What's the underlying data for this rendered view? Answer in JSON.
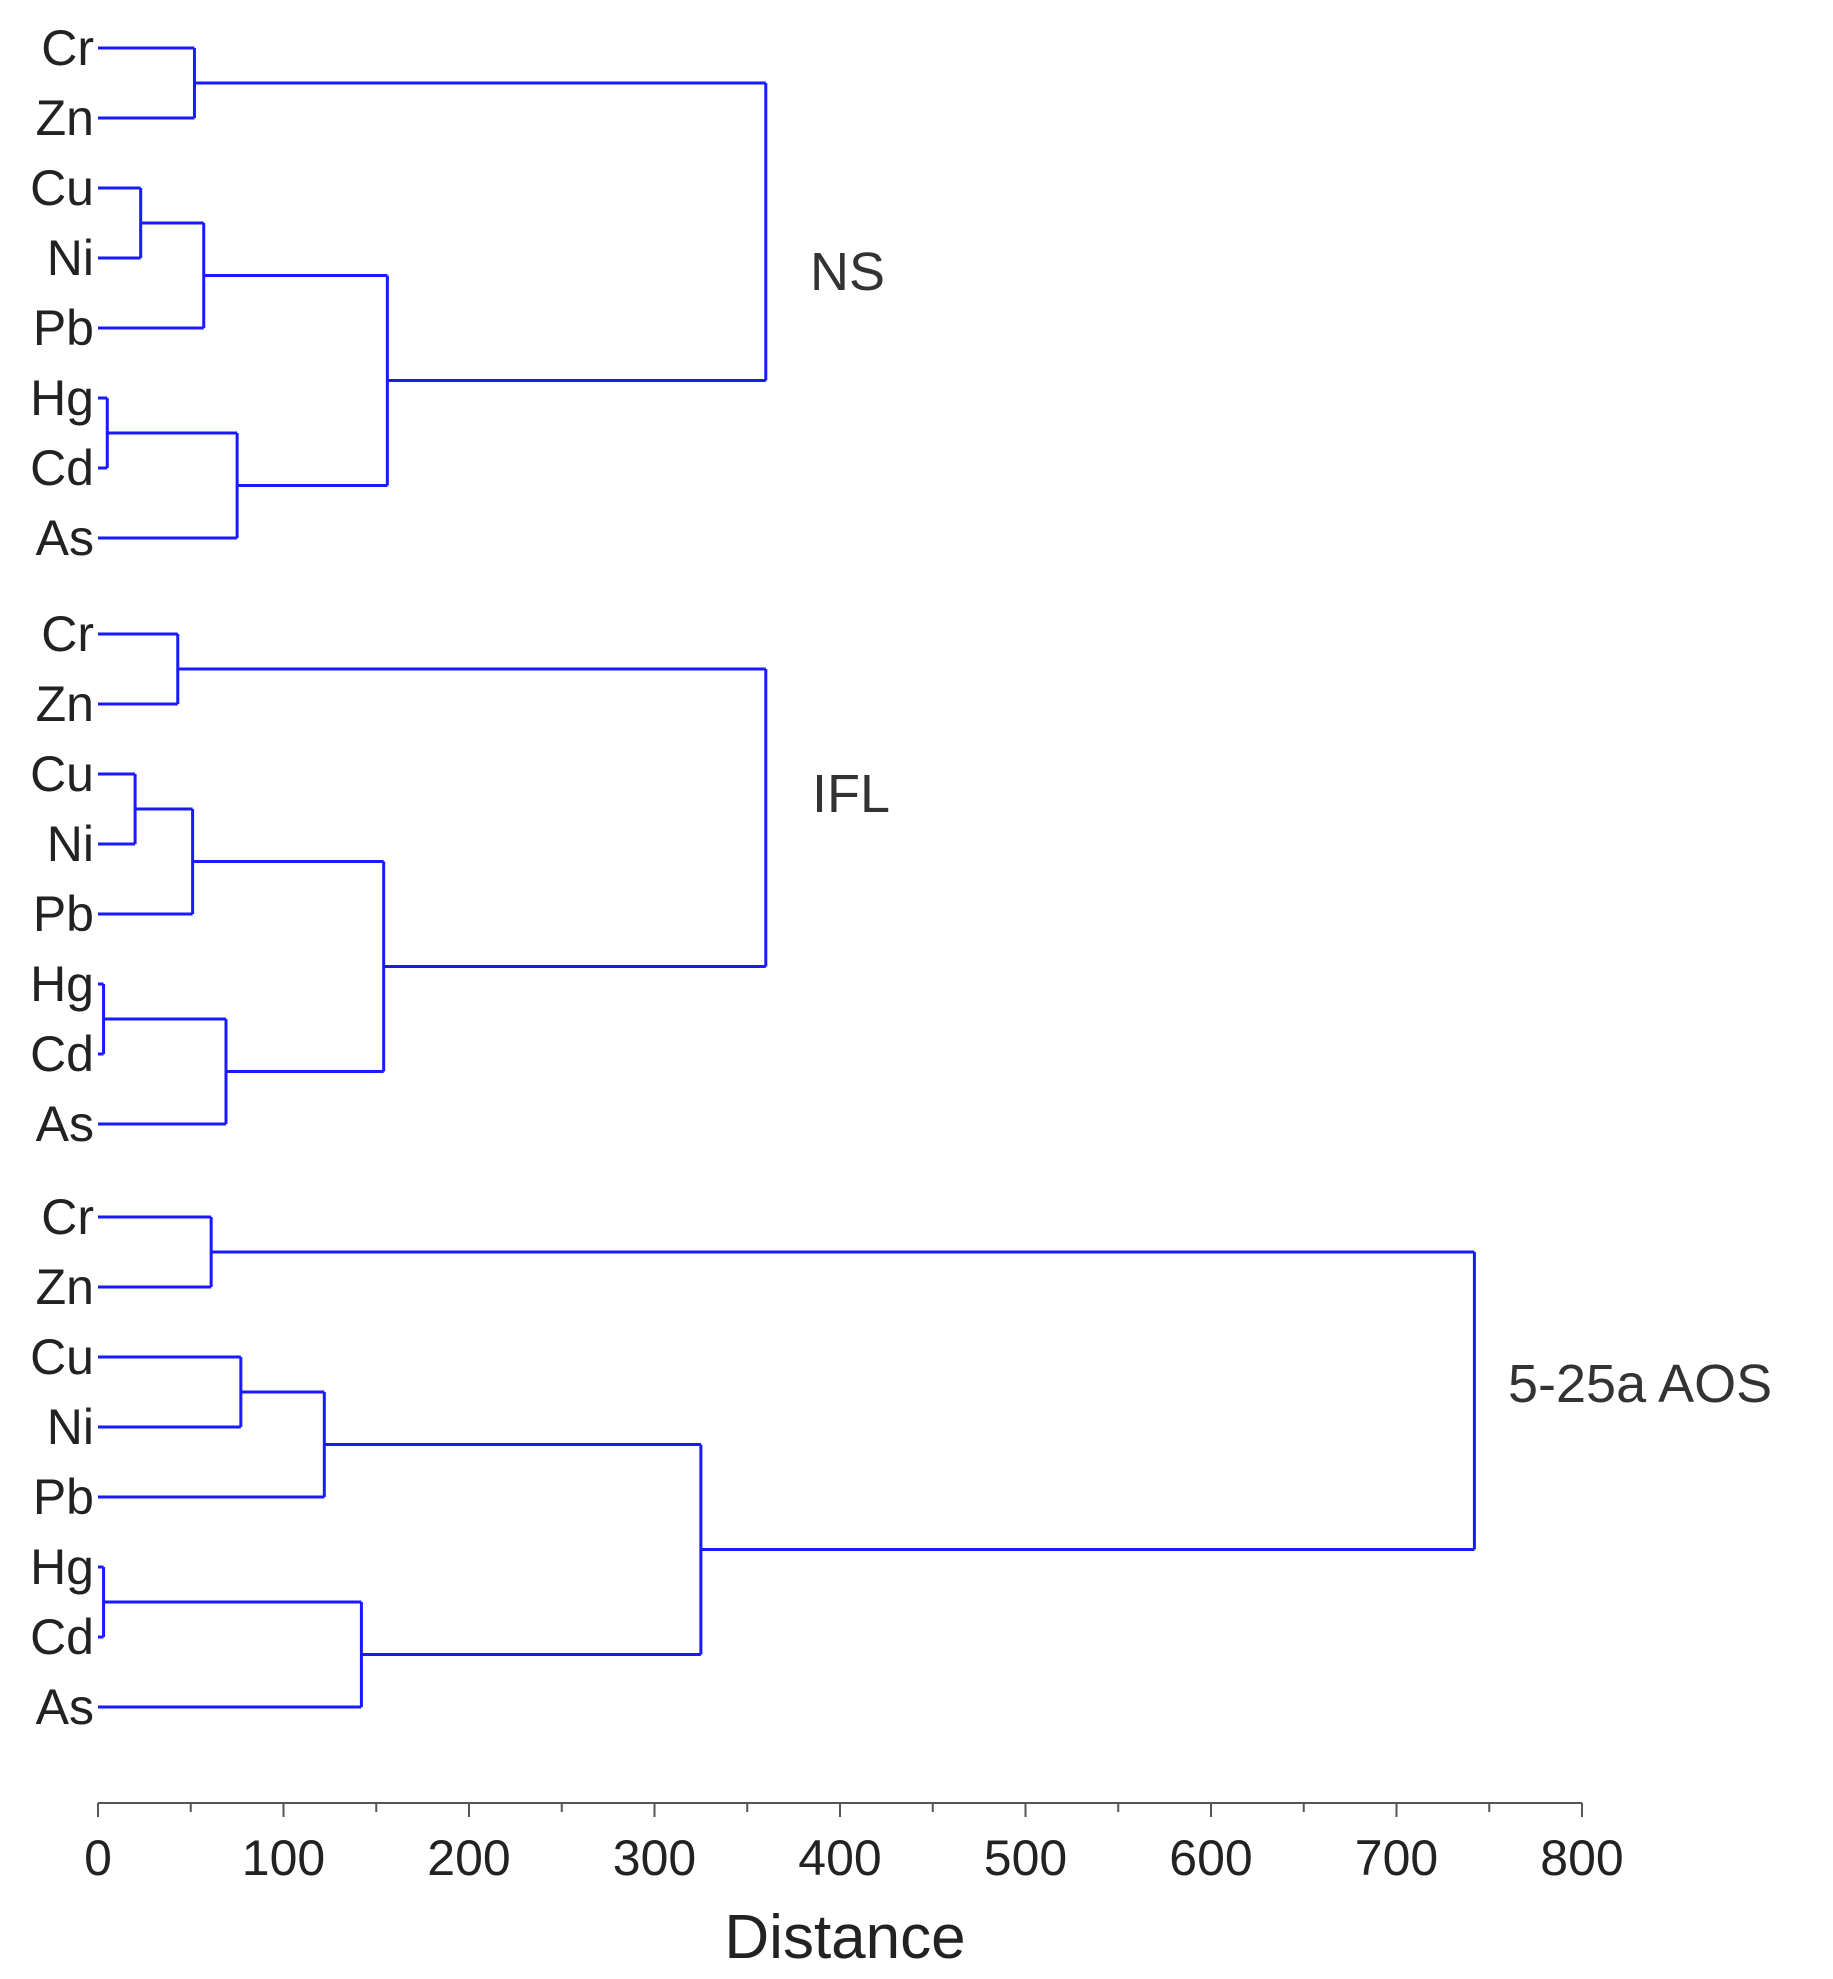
{
  "chart_data": {
    "type": "dendrogram",
    "orientation": "horizontal",
    "xlabel": "Distance",
    "xlim": [
      0,
      800
    ],
    "xticks": [
      0,
      100,
      200,
      300,
      400,
      500,
      600,
      700,
      800
    ],
    "xtick_labels": [
      "0",
      "100",
      "200",
      "300",
      "400",
      "500",
      "600",
      "700",
      "800"
    ],
    "grid": false,
    "line_color": "#1a1aff",
    "panels": [
      {
        "group_label": "NS",
        "leaves": [
          "Cr",
          "Zn",
          "Cu",
          "Ni",
          "Pb",
          "Hg",
          "Cd",
          "As"
        ],
        "merges": [
          {
            "children": [
              "Cr",
              "Zn"
            ],
            "id": "CrZn",
            "distance": 52
          },
          {
            "children": [
              "Cu",
              "Ni"
            ],
            "id": "CuNi",
            "distance": 23
          },
          {
            "children": [
              "CuNi",
              "Pb"
            ],
            "id": "CuNiPb",
            "distance": 57
          },
          {
            "children": [
              "Hg",
              "Cd"
            ],
            "id": "HgCd",
            "distance": 5
          },
          {
            "children": [
              "HgCd",
              "As"
            ],
            "id": "HgCdAs",
            "distance": 75
          },
          {
            "children": [
              "CuNiPb",
              "HgCdAs"
            ],
            "id": "Mid",
            "distance": 156
          },
          {
            "children": [
              "CrZn",
              "Mid"
            ],
            "id": "Root",
            "distance": 360
          }
        ]
      },
      {
        "group_label": "IFL",
        "leaves": [
          "Cr",
          "Zn",
          "Cu",
          "Ni",
          "Pb",
          "Hg",
          "Cd",
          "As"
        ],
        "merges": [
          {
            "children": [
              "Cr",
              "Zn"
            ],
            "id": "CrZn",
            "distance": 43
          },
          {
            "children": [
              "Cu",
              "Ni"
            ],
            "id": "CuNi",
            "distance": 20
          },
          {
            "children": [
              "CuNi",
              "Pb"
            ],
            "id": "CuNiPb",
            "distance": 51
          },
          {
            "children": [
              "Hg",
              "Cd"
            ],
            "id": "HgCd",
            "distance": 3
          },
          {
            "children": [
              "HgCd",
              "As"
            ],
            "id": "HgCdAs",
            "distance": 69
          },
          {
            "children": [
              "CuNiPb",
              "HgCdAs"
            ],
            "id": "Mid",
            "distance": 154
          },
          {
            "children": [
              "CrZn",
              "Mid"
            ],
            "id": "Root",
            "distance": 360
          }
        ]
      },
      {
        "group_label": "5-25a AOS",
        "leaves": [
          "Cr",
          "Zn",
          "Cu",
          "Ni",
          "Pb",
          "Hg",
          "Cd",
          "As"
        ],
        "merges": [
          {
            "children": [
              "Cr",
              "Zn"
            ],
            "id": "CrZn",
            "distance": 61
          },
          {
            "children": [
              "Cu",
              "Ni"
            ],
            "id": "CuNi",
            "distance": 77
          },
          {
            "children": [
              "CuNi",
              "Pb"
            ],
            "id": "CuNiPb",
            "distance": 122
          },
          {
            "children": [
              "Hg",
              "Cd"
            ],
            "id": "HgCd",
            "distance": 3
          },
          {
            "children": [
              "HgCd",
              "As"
            ],
            "id": "HgCdAs",
            "distance": 142
          },
          {
            "children": [
              "CuNiPb",
              "HgCdAs"
            ],
            "id": "Mid",
            "distance": 325
          },
          {
            "children": [
              "CrZn",
              "Mid"
            ],
            "id": "Root",
            "distance": 742
          }
        ]
      }
    ]
  }
}
